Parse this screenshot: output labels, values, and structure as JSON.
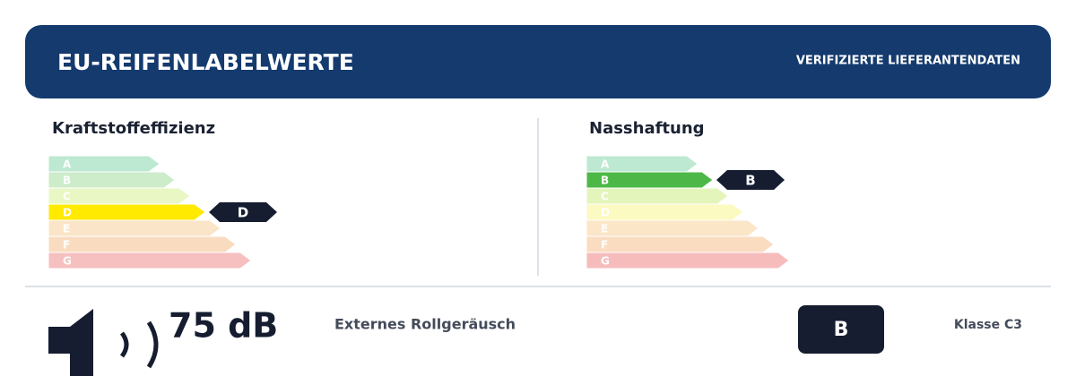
{
  "header": {
    "title": "EU-REIFENLABELWERTE",
    "badge": "VERIFIZIERTE LIEFERANTENDATEN"
  },
  "fuel": {
    "title": "Kraftstoffeffizienz",
    "classes": [
      "A",
      "B",
      "C",
      "D",
      "E",
      "F",
      "G"
    ],
    "selected": "D",
    "colors": [
      "#bde8d2",
      "#cdecca",
      "#e9f7c4",
      "#fff4b0",
      "#fbe5c8",
      "#f9dcc0",
      "#f6c0c0"
    ],
    "highlight": "#ffea00"
  },
  "wet": {
    "title": "Nasshaftung",
    "classes": [
      "A",
      "B",
      "C",
      "D",
      "E",
      "F",
      "G"
    ],
    "selected": "B",
    "colors": [
      "#bde8d2",
      "#cdecca",
      "#e4f5bc",
      "#fbfac0",
      "#fbe6c8",
      "#fadcc0",
      "#f6bcbc"
    ],
    "highlight": "#4db848"
  },
  "noise": {
    "value": "75 dB",
    "label": "Externes Rollgeräusch",
    "class": "B",
    "tyre_class": "Klasse C3"
  }
}
